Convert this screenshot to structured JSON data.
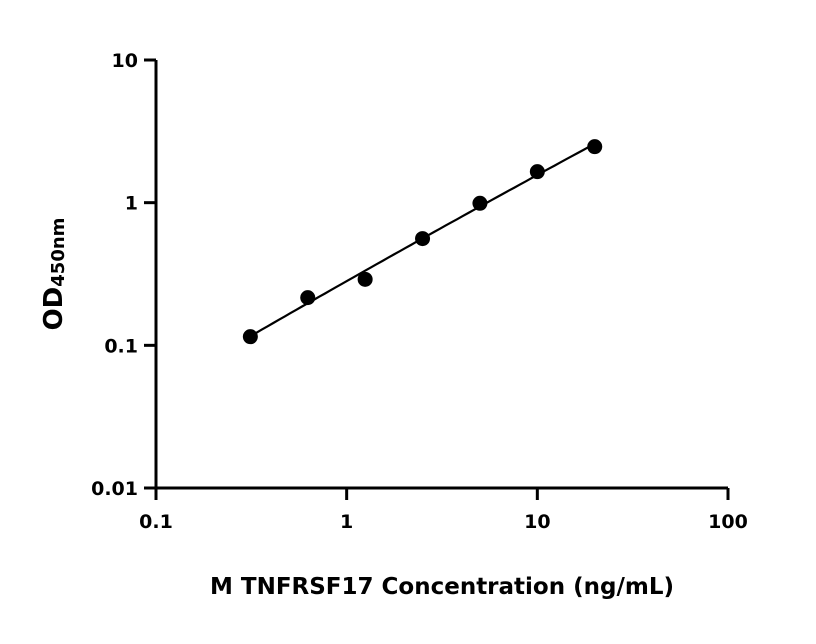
{
  "chart_data": {
    "type": "scatter",
    "title": "",
    "xlabel": "M TNFRSF17 Concentration (ng/mL)",
    "ylabel_main": "OD",
    "ylabel_sub": "450nm",
    "x_scale": "log",
    "y_scale": "log",
    "xlim": [
      0.1,
      100
    ],
    "ylim": [
      0.01,
      10
    ],
    "x_ticks": [
      "0.1",
      "1",
      "10",
      "100"
    ],
    "y_ticks": [
      "0.01",
      "0.1",
      "1",
      "10"
    ],
    "grid": false,
    "legend": "none",
    "fit_curve": true,
    "color": "#000000",
    "points": [
      {
        "x": 0.3125,
        "y": 0.115
      },
      {
        "x": 0.625,
        "y": 0.216
      },
      {
        "x": 1.25,
        "y": 0.29
      },
      {
        "x": 2.5,
        "y": 0.56
      },
      {
        "x": 5,
        "y": 0.99
      },
      {
        "x": 10,
        "y": 1.65
      },
      {
        "x": 20,
        "y": 2.47
      }
    ]
  }
}
